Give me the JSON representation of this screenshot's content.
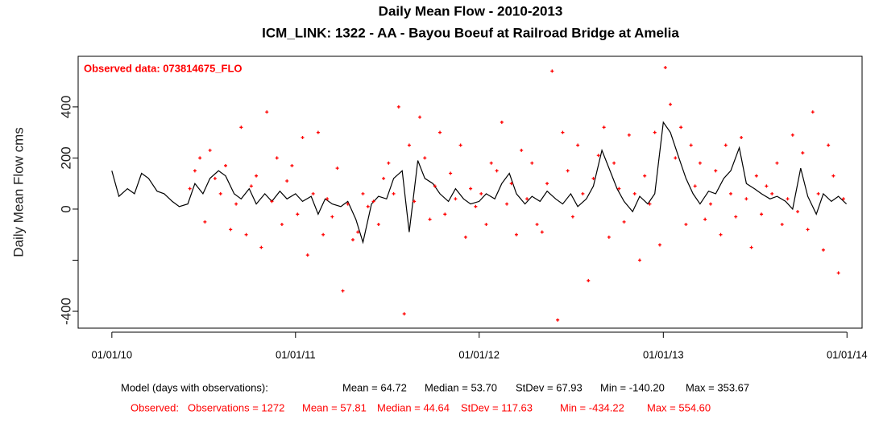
{
  "chart_data": {
    "type": "line",
    "title": "Daily Mean Flow - 2010-2013",
    "subtitle": "ICM_LINK: 1322 - AA - Bayou Boeuf at Railroad Bridge at Amelia",
    "ylabel": "Daily Mean Flow cms",
    "legend_text": "Observed data: 073814675_FLO",
    "xlim": [
      "2009-10-26",
      "2014-01-31"
    ],
    "xticks": [
      {
        "value": "2010-01-01",
        "label": "01/01/10"
      },
      {
        "value": "2011-01-01",
        "label": "01/01/11"
      },
      {
        "value": "2012-01-01",
        "label": "01/01/12"
      },
      {
        "value": "2013-01-01",
        "label": "01/01/13"
      },
      {
        "value": "2014-01-01",
        "label": "01/01/14"
      }
    ],
    "ylim": [
      -466,
      598
    ],
    "yticks": [
      -400,
      {
        "value": -200,
        "label": null
      },
      0,
      200,
      400
    ],
    "series": [
      {
        "name": "Model",
        "type": "line",
        "color": "#000000",
        "x": [
          "2010-01-01",
          "2010-01-15",
          "2010-02-01",
          "2010-02-15",
          "2010-03-01",
          "2010-03-15",
          "2010-04-01",
          "2010-04-15",
          "2010-05-01",
          "2010-05-15",
          "2010-06-01",
          "2010-06-15",
          "2010-07-01",
          "2010-07-15",
          "2010-08-01",
          "2010-08-15",
          "2010-09-01",
          "2010-09-15",
          "2010-10-01",
          "2010-10-15",
          "2010-11-01",
          "2010-11-15",
          "2010-12-01",
          "2010-12-15",
          "2011-01-01",
          "2011-01-15",
          "2011-02-01",
          "2011-02-15",
          "2011-03-01",
          "2011-03-15",
          "2011-04-01",
          "2011-04-15",
          "2011-05-01",
          "2011-05-15",
          "2011-06-01",
          "2011-06-15",
          "2011-07-01",
          "2011-07-15",
          "2011-08-01",
          "2011-08-15",
          "2011-09-01",
          "2011-09-15",
          "2011-10-01",
          "2011-10-15",
          "2011-11-01",
          "2011-11-15",
          "2011-12-01",
          "2011-12-15",
          "2012-01-01",
          "2012-01-15",
          "2012-02-01",
          "2012-02-15",
          "2012-03-01",
          "2012-03-15",
          "2012-04-01",
          "2012-04-15",
          "2012-05-01",
          "2012-05-15",
          "2012-06-01",
          "2012-06-15",
          "2012-07-01",
          "2012-07-15",
          "2012-08-01",
          "2012-08-15",
          "2012-09-01",
          "2012-09-15",
          "2012-10-01",
          "2012-10-15",
          "2012-11-01",
          "2012-11-15",
          "2012-12-01",
          "2012-12-15",
          "2013-01-01",
          "2013-01-15",
          "2013-02-01",
          "2013-02-15",
          "2013-03-01",
          "2013-03-15",
          "2013-04-01",
          "2013-04-15",
          "2013-05-01",
          "2013-05-15",
          "2013-06-01",
          "2013-06-15",
          "2013-07-01",
          "2013-07-15",
          "2013-08-01",
          "2013-08-15",
          "2013-09-01",
          "2013-09-15",
          "2013-10-01",
          "2013-10-15",
          "2013-11-01",
          "2013-11-15",
          "2013-12-01",
          "2013-12-15",
          "2013-12-31"
        ],
        "values": [
          150,
          50,
          80,
          60,
          140,
          120,
          70,
          60,
          30,
          10,
          20,
          100,
          60,
          120,
          150,
          130,
          60,
          40,
          80,
          20,
          60,
          30,
          70,
          40,
          60,
          30,
          50,
          -20,
          40,
          20,
          10,
          30,
          -40,
          -130,
          20,
          50,
          40,
          120,
          150,
          -90,
          190,
          120,
          100,
          60,
          30,
          80,
          40,
          20,
          30,
          60,
          40,
          100,
          140,
          60,
          20,
          50,
          30,
          70,
          40,
          20,
          60,
          10,
          40,
          90,
          230,
          160,
          80,
          30,
          -10,
          50,
          20,
          60,
          340,
          300,
          200,
          120,
          60,
          20,
          70,
          60,
          120,
          150,
          240,
          100,
          80,
          60,
          40,
          50,
          30,
          0,
          160,
          50,
          -20,
          60,
          30,
          50,
          20
        ]
      },
      {
        "name": "Observed",
        "type": "scatter",
        "color": "#ff0000",
        "x": [
          "2010-06-05",
          "2010-06-15",
          "2010-06-25",
          "2010-07-05",
          "2010-07-15",
          "2010-07-25",
          "2010-08-05",
          "2010-08-15",
          "2010-08-25",
          "2010-09-05",
          "2010-09-15",
          "2010-09-25",
          "2010-10-05",
          "2010-10-15",
          "2010-10-25",
          "2010-11-05",
          "2010-11-15",
          "2010-11-25",
          "2010-12-05",
          "2010-12-15",
          "2010-12-25",
          "2011-01-05",
          "2011-01-15",
          "2011-01-25",
          "2011-02-05",
          "2011-02-15",
          "2011-02-25",
          "2011-03-05",
          "2011-03-15",
          "2011-03-25",
          "2011-04-05",
          "2011-04-15",
          "2011-04-25",
          "2011-05-05",
          "2011-05-15",
          "2011-05-25",
          "2011-06-05",
          "2011-06-15",
          "2011-06-25",
          "2011-07-05",
          "2011-07-15",
          "2011-07-25",
          "2011-08-05",
          "2011-08-15",
          "2011-08-25",
          "2011-09-05",
          "2011-09-15",
          "2011-09-25",
          "2011-10-05",
          "2011-10-15",
          "2011-10-25",
          "2011-11-05",
          "2011-11-15",
          "2011-11-25",
          "2011-12-05",
          "2011-12-15",
          "2011-12-25",
          "2012-01-05",
          "2012-01-15",
          "2012-01-25",
          "2012-02-05",
          "2012-02-15",
          "2012-02-25",
          "2012-03-05",
          "2012-03-15",
          "2012-03-25",
          "2012-04-05",
          "2012-04-15",
          "2012-04-25",
          "2012-05-05",
          "2012-05-15",
          "2012-05-25",
          "2012-06-05",
          "2012-06-15",
          "2012-06-25",
          "2012-07-05",
          "2012-07-15",
          "2012-07-25",
          "2012-08-05",
          "2012-08-15",
          "2012-08-25",
          "2012-09-05",
          "2012-09-15",
          "2012-09-25",
          "2012-10-05",
          "2012-10-15",
          "2012-10-25",
          "2012-11-05",
          "2012-11-15",
          "2012-11-25",
          "2012-12-05",
          "2012-12-15",
          "2012-12-25",
          "2013-01-05",
          "2013-01-15",
          "2013-01-25",
          "2013-02-05",
          "2013-02-15",
          "2013-02-25",
          "2013-03-05",
          "2013-03-15",
          "2013-03-25",
          "2013-04-05",
          "2013-04-15",
          "2013-04-25",
          "2013-05-05",
          "2013-05-15",
          "2013-05-25",
          "2013-06-05",
          "2013-06-15",
          "2013-06-25",
          "2013-07-05",
          "2013-07-15",
          "2013-07-25",
          "2013-08-05",
          "2013-08-15",
          "2013-08-25",
          "2013-09-05",
          "2013-09-15",
          "2013-09-25",
          "2013-10-05",
          "2013-10-15",
          "2013-10-25",
          "2013-11-05",
          "2013-11-15",
          "2013-11-25",
          "2013-12-05",
          "2013-12-15",
          "2013-12-25"
        ],
        "values": [
          80,
          150,
          200,
          -50,
          230,
          120,
          60,
          170,
          -80,
          20,
          320,
          -100,
          90,
          130,
          -150,
          380,
          30,
          200,
          -60,
          110,
          170,
          -20,
          280,
          -180,
          60,
          300,
          -100,
          40,
          -30,
          160,
          -320,
          20,
          -120,
          -90,
          60,
          10,
          30,
          -60,
          120,
          180,
          60,
          400,
          -410,
          250,
          30,
          360,
          200,
          -40,
          90,
          300,
          -20,
          140,
          40,
          250,
          -110,
          80,
          10,
          60,
          -60,
          180,
          150,
          340,
          20,
          100,
          -100,
          230,
          40,
          180,
          -60,
          -90,
          100,
          540,
          -434,
          300,
          150,
          -30,
          250,
          60,
          -280,
          120,
          210,
          320,
          -110,
          180,
          80,
          -50,
          290,
          60,
          -200,
          130,
          20,
          300,
          -140,
          554,
          410,
          200,
          320,
          -60,
          250,
          90,
          180,
          -40,
          20,
          150,
          -100,
          250,
          60,
          -30,
          280,
          40,
          -150,
          130,
          -20,
          90,
          60,
          180,
          -60,
          40,
          290,
          -10,
          220,
          -80,
          380,
          60,
          -160,
          250,
          130,
          -250,
          40
        ]
      }
    ],
    "annotations": [
      [
        "Model (days with observations):",
        "Mean = 64.72",
        "Median = 53.70",
        "StDev = 67.93",
        "Min = -140.20",
        "Max = 353.67"
      ],
      [
        "Observed:",
        "Observations = 1272",
        "Mean = 57.81",
        "Median = 44.64",
        "StDev = 117.63",
        "Min = -434.22",
        "Max = 554.60"
      ]
    ]
  }
}
